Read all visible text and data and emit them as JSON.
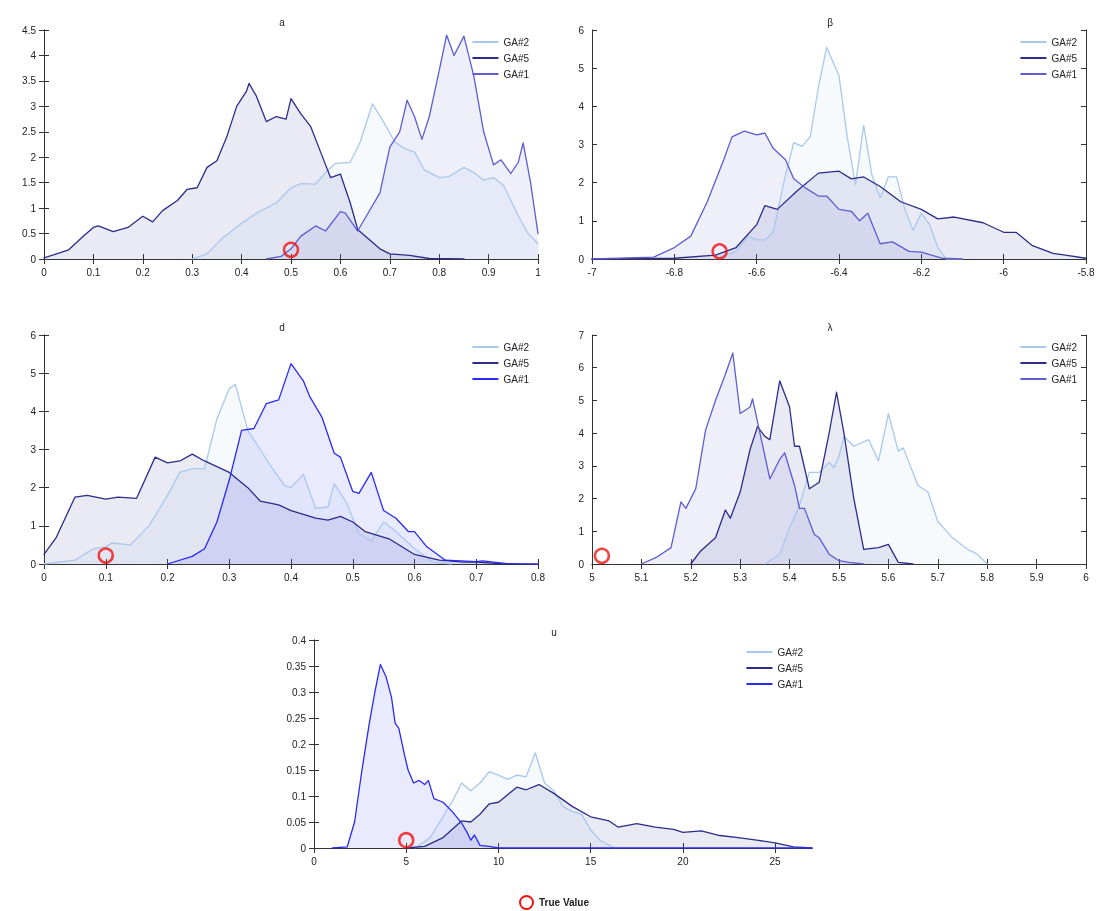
{
  "chart_data": [
    {
      "type": "area",
      "title": "a",
      "xlim": [
        0,
        1
      ],
      "xticks": [
        0,
        0.1,
        0.2,
        0.3,
        0.4,
        0.5,
        0.6,
        0.7,
        0.8,
        0.9,
        1
      ],
      "ylim": [
        0,
        4.5
      ],
      "yticks": [
        0,
        0.5,
        1,
        1.5,
        2,
        2.5,
        3,
        3.5,
        4,
        4.5
      ],
      "legend": "top right",
      "grid": false,
      "series": [
        {
          "name": "GA#2",
          "color": "#a8c8ee",
          "x": [
            0.3,
            0.33,
            0.36,
            0.4,
            0.43,
            0.47,
            0.5,
            0.52,
            0.55,
            0.57,
            0.59,
            0.62,
            0.64,
            0.665,
            0.69,
            0.71,
            0.73,
            0.75,
            0.77,
            0.8,
            0.82,
            0.85,
            0.87,
            0.89,
            0.91,
            0.93,
            0.96,
            0.98,
            1
          ],
          "values": [
            0,
            0.1,
            0.4,
            0.7,
            0.9,
            1.1,
            1.4,
            1.48,
            1.47,
            1.7,
            1.88,
            1.9,
            2.3,
            3.05,
            2.65,
            2.3,
            2.17,
            2.1,
            1.75,
            1.6,
            1.62,
            1.8,
            1.7,
            1.55,
            1.6,
            1.45,
            0.85,
            0.5,
            0.3
          ]
        },
        {
          "name": "GA#5",
          "color": "#2c2c8a",
          "x": [
            0,
            0.05,
            0.08,
            0.1,
            0.11,
            0.14,
            0.17,
            0.2,
            0.22,
            0.24,
            0.27,
            0.29,
            0.31,
            0.33,
            0.35,
            0.37,
            0.39,
            0.41,
            0.415,
            0.43,
            0.45,
            0.47,
            0.49,
            0.5,
            0.52,
            0.54,
            0.56,
            0.58,
            0.6,
            0.62,
            0.635,
            0.65,
            0.68,
            0.7,
            0.74,
            0.78,
            0.85
          ],
          "values": [
            0.02,
            0.18,
            0.45,
            0.62,
            0.65,
            0.54,
            0.62,
            0.84,
            0.73,
            0.95,
            1.15,
            1.37,
            1.4,
            1.8,
            1.93,
            2.4,
            3,
            3.3,
            3.45,
            3.2,
            2.7,
            2.8,
            2.75,
            3.15,
            2.85,
            2.6,
            2.1,
            1.6,
            1.67,
            1.1,
            0.58,
            0.45,
            0.2,
            0.1,
            0.07,
            0.01,
            0
          ]
        },
        {
          "name": "GA#1",
          "color": "#5d5dd0",
          "x": [
            0.45,
            0.48,
            0.5,
            0.52,
            0.55,
            0.57,
            0.6,
            0.61,
            0.635,
            0.65,
            0.68,
            0.7,
            0.72,
            0.735,
            0.75,
            0.765,
            0.78,
            0.8,
            0.815,
            0.83,
            0.85,
            0.87,
            0.89,
            0.91,
            0.925,
            0.945,
            0.96,
            0.97,
            0.985,
            1
          ],
          "values": [
            0,
            0.05,
            0.2,
            0.45,
            0.65,
            0.55,
            0.93,
            0.9,
            0.55,
            0.8,
            1.3,
            2.2,
            2.5,
            3.12,
            2.8,
            2.35,
            2.8,
            3.7,
            4.4,
            4,
            4.38,
            3.6,
            2.5,
            1.85,
            1.95,
            1.68,
            1.9,
            2.28,
            1.5,
            0.5
          ]
        },
        {
          "type": "scatter",
          "marker": "circle",
          "color": "#ee1111",
          "x": [
            0.5
          ],
          "values": [
            0.18
          ]
        }
      ]
    },
    {
      "type": "area",
      "title": "β",
      "xlim": [
        -7,
        -5.8
      ],
      "xticks": [
        -7,
        -6.8,
        -6.6,
        -6.4,
        -6.2,
        -6,
        -5.8
      ],
      "ylim": [
        0,
        6
      ],
      "yticks": [
        0,
        1,
        2,
        3,
        4,
        5,
        6
      ],
      "legend": "top right",
      "grid": false,
      "series": [
        {
          "name": "GA#2",
          "color": "#a8c8ee",
          "x": [
            -6.7,
            -6.65,
            -6.62,
            -6.6,
            -6.58,
            -6.56,
            -6.53,
            -6.51,
            -6.49,
            -6.47,
            -6.45,
            -6.43,
            -6.4,
            -6.38,
            -6.36,
            -6.34,
            -6.32,
            -6.3,
            -6.28,
            -6.26,
            -6.24,
            -6.22,
            -6.2,
            -6.18,
            -6.16,
            -6.14,
            -6.1
          ],
          "values": [
            0,
            0.2,
            0.6,
            0.5,
            0.5,
            0.7,
            2.2,
            3.05,
            2.95,
            3.2,
            4.5,
            5.55,
            4.8,
            3.2,
            1.95,
            3.5,
            2.2,
            1.6,
            2.15,
            2.15,
            1.3,
            0.75,
            1.2,
            0.9,
            0.3,
            0,
            0
          ]
        },
        {
          "name": "GA#5",
          "color": "#2c2c8a",
          "x": [
            -7,
            -6.8,
            -6.7,
            -6.65,
            -6.6,
            -6.58,
            -6.55,
            -6.5,
            -6.45,
            -6.4,
            -6.37,
            -6.34,
            -6.3,
            -6.25,
            -6.2,
            -6.16,
            -6.12,
            -6.05,
            -6,
            -5.97,
            -5.93,
            -5.88,
            -5.85,
            -5.8
          ],
          "values": [
            0,
            0.02,
            0.1,
            0.3,
            0.9,
            1.4,
            1.3,
            1.8,
            2.25,
            2.3,
            2.1,
            2.15,
            1.9,
            1.5,
            1.3,
            1.05,
            1.1,
            0.95,
            0.7,
            0.7,
            0.35,
            0.15,
            0.1,
            0.02
          ]
        },
        {
          "name": "GA#1",
          "color": "#5d5dd0",
          "x": [
            -7,
            -6.85,
            -6.8,
            -6.76,
            -6.72,
            -6.68,
            -6.66,
            -6.63,
            -6.6,
            -6.58,
            -6.56,
            -6.53,
            -6.51,
            -6.48,
            -6.45,
            -6.43,
            -6.4,
            -6.37,
            -6.35,
            -6.33,
            -6.3,
            -6.27,
            -6.23,
            -6.2,
            -6.15,
            -6.1
          ],
          "values": [
            0,
            0.05,
            0.3,
            0.6,
            1.5,
            2.6,
            3.2,
            3.35,
            3.25,
            3.3,
            2.9,
            2.6,
            2.1,
            1.85,
            1.65,
            1.65,
            1.3,
            1.25,
            1,
            1.2,
            0.4,
            0.45,
            0.2,
            0.18,
            0.02,
            0
          ]
        },
        {
          "type": "scatter",
          "marker": "circle",
          "color": "#ee1111",
          "x": [
            -6.69
          ],
          "values": [
            0.2
          ]
        }
      ]
    },
    {
      "type": "area",
      "title": "d",
      "xlim": [
        0,
        0.8
      ],
      "xticks": [
        0,
        0.1,
        0.2,
        0.3,
        0.4,
        0.5,
        0.6,
        0.7,
        0.8
      ],
      "ylim": [
        0,
        6
      ],
      "yticks": [
        0,
        1,
        2,
        3,
        4,
        5,
        6
      ],
      "legend": "top right",
      "grid": false,
      "series": [
        {
          "name": "GA#2",
          "color": "#a8c8ee",
          "x": [
            0,
            0.05,
            0.08,
            0.1,
            0.11,
            0.14,
            0.17,
            0.2,
            0.22,
            0.24,
            0.26,
            0.28,
            0.3,
            0.31,
            0.33,
            0.35,
            0.37,
            0.39,
            0.4,
            0.42,
            0.44,
            0.46,
            0.47,
            0.49,
            0.51,
            0.53,
            0.55,
            0.57,
            0.6,
            0.63,
            0.66
          ],
          "values": [
            0,
            0.1,
            0.4,
            0.45,
            0.55,
            0.5,
            1,
            1.8,
            2.4,
            2.5,
            2.5,
            3.8,
            4.6,
            4.7,
            3.5,
            3,
            2.5,
            2.05,
            2,
            2.35,
            1.45,
            1.5,
            2.1,
            1.6,
            0.8,
            0.6,
            1.1,
            0.85,
            0.4,
            0.05,
            0
          ]
        },
        {
          "name": "GA#5",
          "color": "#2c2c8a",
          "x": [
            0,
            0.02,
            0.05,
            0.07,
            0.1,
            0.12,
            0.15,
            0.18,
            0.2,
            0.22,
            0.24,
            0.26,
            0.28,
            0.3,
            0.33,
            0.35,
            0.38,
            0.4,
            0.44,
            0.46,
            0.48,
            0.5,
            0.52,
            0.56,
            0.6,
            0.64,
            0.68,
            0.7,
            0.75
          ],
          "values": [
            0.25,
            0.7,
            1.75,
            1.8,
            1.7,
            1.75,
            1.72,
            2.8,
            2.65,
            2.7,
            2.88,
            2.7,
            2.55,
            2.4,
            2,
            1.65,
            1.55,
            1.4,
            1.2,
            1.15,
            1.25,
            1.1,
            0.85,
            0.65,
            0.25,
            0.1,
            0.05,
            0.05,
            0
          ]
        },
        {
          "name": "GA#1",
          "color": "#2a2af5",
          "x": [
            0.2,
            0.24,
            0.26,
            0.28,
            0.3,
            0.32,
            0.34,
            0.36,
            0.38,
            0.4,
            0.42,
            0.43,
            0.45,
            0.47,
            0.48,
            0.5,
            0.51,
            0.53,
            0.55,
            0.57,
            0.59,
            0.6,
            0.62,
            0.65,
            0.7,
            0.71,
            0.75,
            0.8
          ],
          "values": [
            0,
            0.2,
            0.4,
            1.1,
            2.2,
            3.5,
            3.55,
            4.2,
            4.3,
            5.25,
            4.8,
            4.4,
            3.85,
            2.9,
            2.8,
            1.9,
            1.85,
            2.4,
            1.4,
            1.2,
            0.85,
            0.85,
            0.45,
            0.1,
            0.06,
            0.08,
            0.01,
            0
          ]
        },
        {
          "type": "scatter",
          "marker": "circle",
          "color": "#ee1111",
          "x": [
            0.1
          ],
          "values": [
            0.22
          ]
        }
      ]
    },
    {
      "type": "area",
      "title": "λ",
      "xlim": [
        5,
        6
      ],
      "xticks": [
        5,
        5.1,
        5.2,
        5.3,
        5.4,
        5.5,
        5.6,
        5.7,
        5.8,
        5.9,
        6
      ],
      "ylim": [
        0,
        7
      ],
      "yticks": [
        0,
        1,
        2,
        3,
        4,
        5,
        6,
        7
      ],
      "legend": "top right",
      "grid": false,
      "series": [
        {
          "name": "GA#2",
          "color": "#a8c8ee",
          "x": [
            5.35,
            5.38,
            5.4,
            5.42,
            5.44,
            5.46,
            5.48,
            5.49,
            5.5,
            5.51,
            5.53,
            5.56,
            5.58,
            5.6,
            5.62,
            5.63,
            5.66,
            5.68,
            5.7,
            5.73,
            5.76,
            5.78,
            5.8
          ],
          "values": [
            0,
            0.3,
            1.1,
            1.8,
            2.8,
            2.8,
            3.1,
            2.95,
            3.3,
            3.9,
            3.6,
            3.8,
            3.15,
            4.6,
            3.45,
            3.55,
            2.4,
            2.2,
            1.3,
            0.8,
            0.45,
            0.3,
            0
          ]
        },
        {
          "name": "GA#5",
          "color": "#2c2c8a",
          "x": [
            5.2,
            5.22,
            5.25,
            5.27,
            5.28,
            5.3,
            5.32,
            5.335,
            5.35,
            5.36,
            5.38,
            5.4,
            5.41,
            5.42,
            5.44,
            5.46,
            5.48,
            5.495,
            5.51,
            5.53,
            5.55,
            5.58,
            5.6,
            5.62,
            5.65
          ],
          "values": [
            0,
            0.4,
            0.8,
            1.65,
            1.4,
            2.2,
            3.5,
            4.2,
            3.9,
            3.8,
            5.6,
            4.8,
            3.6,
            3.6,
            2.3,
            2.5,
            4,
            5.25,
            4,
            2,
            0.45,
            0.5,
            0.6,
            0.05,
            0
          ]
        },
        {
          "name": "GA#1",
          "color": "#5d5dd0",
          "x": [
            5.1,
            5.13,
            5.16,
            5.18,
            5.19,
            5.21,
            5.23,
            5.25,
            5.27,
            5.285,
            5.3,
            5.32,
            5.325,
            5.34,
            5.36,
            5.38,
            5.39,
            5.41,
            5.42,
            5.43,
            5.45,
            5.46,
            5.48,
            5.5,
            5.52,
            5.55
          ],
          "values": [
            0,
            0.2,
            0.5,
            1.9,
            1.7,
            2.3,
            4.1,
            5,
            5.8,
            6.45,
            4.6,
            4.8,
            5.05,
            4,
            2.6,
            3.2,
            3.4,
            2.4,
            1.7,
            1.7,
            0.9,
            0.8,
            0.3,
            0.1,
            0.05,
            0
          ]
        },
        {
          "type": "scatter",
          "marker": "circle",
          "color": "#ee1111",
          "x": [
            5.02
          ],
          "values": [
            0.25
          ]
        }
      ]
    },
    {
      "type": "area",
      "title": "u",
      "xlim": [
        0,
        27
      ],
      "xticks": [
        0,
        5,
        10,
        15,
        20,
        25
      ],
      "ylim": [
        0,
        0.4
      ],
      "yticks": [
        0,
        0.05,
        0.1,
        0.15,
        0.2,
        0.25,
        0.3,
        0.35,
        0.4
      ],
      "legend": "top right",
      "grid": false,
      "series": [
        {
          "name": "GA#2",
          "color": "#a8c8ee",
          "x": [
            5.5,
            6.3,
            7,
            7.5,
            8,
            8.5,
            9,
            9.5,
            10,
            10.5,
            11,
            11.5,
            12,
            12.5,
            13,
            13.5,
            14,
            14.5,
            15,
            15.5,
            16.3
          ],
          "values": [
            0,
            0.02,
            0.06,
            0.09,
            0.125,
            0.11,
            0.125,
            0.147,
            0.14,
            0.132,
            0.14,
            0.137,
            0.183,
            0.125,
            0.11,
            0.08,
            0.07,
            0.065,
            0.035,
            0.015,
            0
          ]
        },
        {
          "name": "GA#5",
          "color": "#2c2c8a",
          "x": [
            5,
            6,
            7,
            8,
            8.5,
            9,
            9.5,
            10,
            11,
            11.5,
            12.2,
            13,
            14,
            15,
            16,
            16.5,
            17.5,
            18.5,
            19.5,
            20,
            21,
            22,
            23,
            24,
            25,
            26,
            27
          ],
          "values": [
            0,
            0.003,
            0.02,
            0.052,
            0.05,
            0.065,
            0.085,
            0.088,
            0.117,
            0.112,
            0.122,
            0.105,
            0.08,
            0.06,
            0.052,
            0.04,
            0.047,
            0.04,
            0.036,
            0.03,
            0.033,
            0.024,
            0.02,
            0.015,
            0.01,
            0.002,
            0
          ]
        },
        {
          "name": "GA#1",
          "color": "#2a2af5",
          "x": [
            1,
            1.8,
            2.2,
            2.6,
            3,
            3.3,
            3.6,
            3.9,
            4.2,
            4.4,
            4.6,
            4.9,
            5.1,
            5.4,
            5.7,
            6,
            6.2,
            6.5,
            7,
            7.5,
            8,
            8.3,
            8.5,
            8.7,
            9,
            9.5,
            10,
            27
          ],
          "values": [
            0,
            0.002,
            0.05,
            0.15,
            0.24,
            0.3,
            0.353,
            0.33,
            0.29,
            0.24,
            0.23,
            0.18,
            0.15,
            0.125,
            0.13,
            0.122,
            0.13,
            0.095,
            0.088,
            0.07,
            0.048,
            0.03,
            0.015,
            0.025,
            0.005,
            0.003,
            0,
            0
          ]
        },
        {
          "type": "scatter",
          "marker": "circle",
          "color": "#ee1111",
          "x": [
            5
          ],
          "values": [
            0.015
          ]
        }
      ],
      "annotations": [
        "True Value"
      ]
    }
  ]
}
